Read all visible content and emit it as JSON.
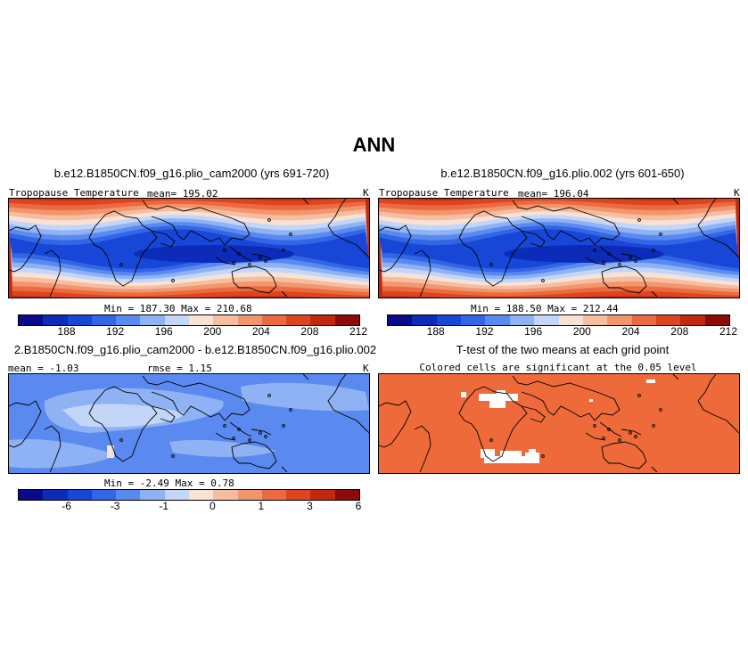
{
  "title": "ANN",
  "panels": {
    "p1": {
      "case_title": "b.e12.B1850CN.f09_g16.plio_cam2000 (yrs 691-720)",
      "variable": "Tropopause Temperature",
      "mean_text": "mean= 195.02",
      "units": "K",
      "minmax_text": "Min = 187.30 Max = 210.68"
    },
    "p2": {
      "case_title": "b.e12.B1850CN.f09_g16.plio.002 (yrs 601-650)",
      "variable": "Tropopause Temperature",
      "mean_text": "mean= 196.04",
      "units": "K",
      "minmax_text": "Min = 188.50 Max = 212.44"
    },
    "p3": {
      "case_title": "2.B1850CN.f09_g16.plio_cam2000 - b.e12.B1850CN.f09_g16.plio.002",
      "mean_text": "mean = -1.03",
      "rmse_text": "rmse = 1.15",
      "units": "K",
      "minmax_text": "Min = -2.49 Max = 0.78"
    },
    "p4": {
      "case_title": "T-test of the two means at each grid point",
      "subtitle": "Colored cells are significant at the 0.05 level"
    }
  },
  "colors": {
    "scale": [
      "#0a0a8c",
      "#0c2bb8",
      "#1847d8",
      "#3366e6",
      "#5a8af0",
      "#8fb2f4",
      "#c3d6f8",
      "#f8e2d6",
      "#f6bd9f",
      "#f29670",
      "#ec6a40",
      "#dd4420",
      "#c22810",
      "#8c0a0a"
    ],
    "ttest_fill": "#ef6a3a"
  },
  "chart_data": [
    {
      "type": "heatmap",
      "title": "b.e12.B1850CN.f09_g16.plio_cam2000 (yrs 691-720)",
      "variable": "Tropopause Temperature",
      "units": "K",
      "mean": 195.02,
      "min": 187.3,
      "max": 210.68,
      "colorbar_ticks": [
        188,
        192,
        196,
        200,
        204,
        208,
        212
      ]
    },
    {
      "type": "heatmap",
      "title": "b.e12.B1850CN.f09_g16.plio.002 (yrs 601-650)",
      "variable": "Tropopause Temperature",
      "units": "K",
      "mean": 196.04,
      "min": 188.5,
      "max": 212.44,
      "colorbar_ticks": [
        188,
        192,
        196,
        200,
        204,
        208,
        212
      ]
    },
    {
      "type": "heatmap",
      "title": "2.B1850CN.f09_g16.plio_cam2000 - b.e12.B1850CN.f09_g16.plio.002",
      "units": "K",
      "mean": -1.03,
      "rmse": 1.15,
      "min": -2.49,
      "max": 0.78,
      "colorbar_ticks": [
        -6,
        -3,
        -1,
        0,
        1,
        3,
        6
      ]
    },
    {
      "type": "heatmap",
      "title": "T-test of the two means at each grid point",
      "subtitle": "Colored cells are significant at the 0.05 level"
    }
  ]
}
